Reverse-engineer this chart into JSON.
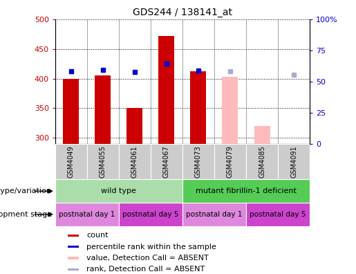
{
  "title": "GDS244 / 138141_at",
  "samples": [
    "GSM4049",
    "GSM4055",
    "GSM4061",
    "GSM4067",
    "GSM4073",
    "GSM4079",
    "GSM4085",
    "GSM4091"
  ],
  "bar_values": [
    400,
    405,
    350,
    472,
    412,
    403,
    320,
    null
  ],
  "bar_colors": [
    "#cc0000",
    "#cc0000",
    "#cc0000",
    "#cc0000",
    "#cc0000",
    "#ffbbbb",
    "#ffbbbb",
    "#ffbbbb"
  ],
  "rank_values": [
    412,
    415,
    411,
    425,
    413,
    412,
    null,
    406
  ],
  "rank_colors": [
    "#0000cc",
    "#0000cc",
    "#0000cc",
    "#0000cc",
    "#0000cc",
    "#aaaacc",
    "#aaaacc",
    "#aaaacc"
  ],
  "ylim": [
    290,
    500
  ],
  "yticks": [
    300,
    350,
    400,
    450,
    500
  ],
  "y2lim": [
    0,
    100
  ],
  "y2ticks": [
    0,
    25,
    50,
    75,
    100
  ],
  "y2labels": [
    "0",
    "25",
    "50",
    "75",
    "100%"
  ],
  "ylabel_color": "#cc0000",
  "y2label_color": "#0000cc",
  "genotype_groups": [
    {
      "label": "wild type",
      "start": 0,
      "end": 4,
      "color": "#aaddaa"
    },
    {
      "label": "mutant fibrillin-1 deficient",
      "start": 4,
      "end": 8,
      "color": "#55cc55"
    }
  ],
  "dev_stage_groups": [
    {
      "label": "postnatal day 1",
      "start": 0,
      "end": 2,
      "color": "#dd88dd"
    },
    {
      "label": "postnatal day 5",
      "start": 2,
      "end": 4,
      "color": "#cc44cc"
    },
    {
      "label": "postnatal day 1",
      "start": 4,
      "end": 6,
      "color": "#dd88dd"
    },
    {
      "label": "postnatal day 5",
      "start": 6,
      "end": 8,
      "color": "#cc44cc"
    }
  ],
  "legend_items": [
    {
      "label": "count",
      "color": "#cc0000"
    },
    {
      "label": "percentile rank within the sample",
      "color": "#0000cc"
    },
    {
      "label": "value, Detection Call = ABSENT",
      "color": "#ffbbbb"
    },
    {
      "label": "rank, Detection Call = ABSENT",
      "color": "#aaaacc"
    }
  ],
  "bar_width": 0.5,
  "rank_marker_size": 5,
  "sample_bg_color": "#cccccc",
  "background_color": "#ffffff"
}
